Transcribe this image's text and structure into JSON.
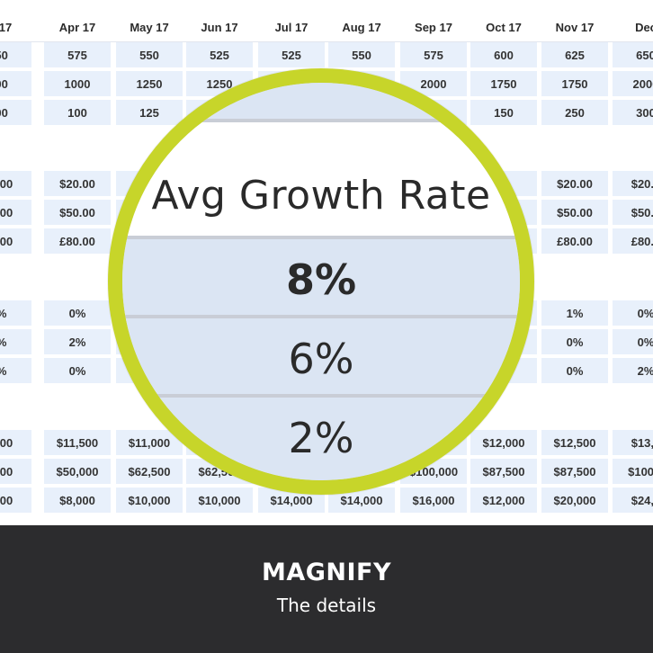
{
  "spreadsheet": {
    "headers": [
      "ar 17",
      "Apr 17",
      "May 17",
      "Jun 17",
      "Jul 17",
      "Aug 17",
      "Sep 17",
      "Oct 17",
      "Nov 17",
      "Dec"
    ],
    "groups": [
      [
        [
          "550",
          "575",
          "550",
          "525",
          "525",
          "550",
          "575",
          "600",
          "625",
          "650"
        ],
        [
          "000",
          "1000",
          "1250",
          "1250",
          "",
          "",
          "2000",
          "1750",
          "1750",
          "2000"
        ],
        [
          "100",
          "100",
          "125",
          "",
          "",
          "",
          "",
          "150",
          "250",
          "300"
        ]
      ],
      [
        [
          "20.00",
          "$20.00",
          "",
          "",
          "",
          "",
          "",
          "0",
          "$20.00",
          "$20.0"
        ],
        [
          "50.00",
          "$50.00",
          "",
          "",
          "",
          "",
          "",
          "",
          "$50.00",
          "$50.0"
        ],
        [
          "30.00",
          "£80.00",
          "",
          "",
          "",
          "",
          "",
          "",
          "£80.00",
          "£80.0"
        ]
      ],
      [
        [
          "0%",
          "0%",
          "",
          "",
          "",
          "",
          "",
          "",
          "1%",
          "0%"
        ],
        [
          "0%",
          "2%",
          "",
          "",
          "",
          "",
          "",
          "",
          "0%",
          "0%"
        ],
        [
          "2%",
          "0%",
          "",
          "",
          "",
          "",
          "",
          "",
          "0%",
          "2%"
        ]
      ],
      [
        [
          "1,000",
          "$11,500",
          "$11,000",
          "",
          "",
          "",
          "",
          "$12,000",
          "$12,500",
          "$13,0"
        ],
        [
          "0,000",
          "$50,000",
          "$62,500",
          "$62,500",
          "",
          "",
          "$100,000",
          "$87,500",
          "$87,500",
          "$100,0"
        ],
        [
          "3,000",
          "$8,000",
          "$10,000",
          "$10,000",
          "$14,000",
          "$14,000",
          "$16,000",
          "$12,000",
          "$20,000",
          "$24,0"
        ]
      ]
    ]
  },
  "magnifier": {
    "title": "Avg Growth Rate",
    "values": [
      "8%",
      "6%",
      "2%"
    ]
  },
  "footer": {
    "title": "MAGNIFY",
    "subtitle": "The details"
  }
}
